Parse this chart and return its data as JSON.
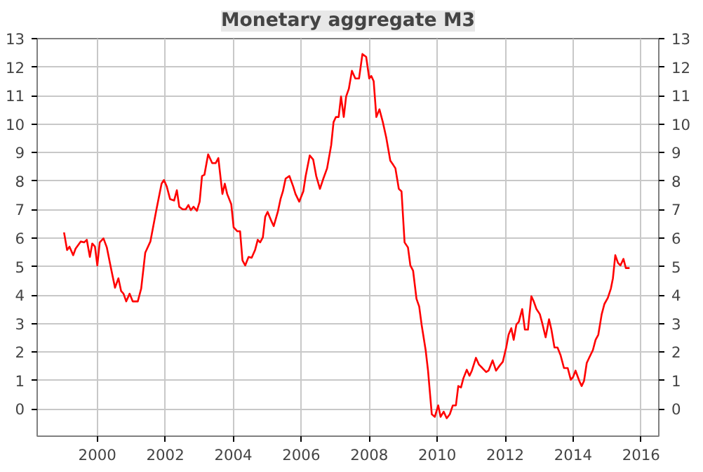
{
  "chart_data": {
    "type": "line",
    "title": "Monetary aggregate M3",
    "x": [
      1999.02,
      1999.11,
      1999.18,
      1999.29,
      1999.36,
      1999.51,
      1999.61,
      1999.69,
      1999.78,
      1999.85,
      1999.93,
      2000.0,
      2000.07,
      2000.18,
      2000.28,
      2000.4,
      2000.52,
      2000.62,
      2000.7,
      2000.77,
      2000.85,
      2000.95,
      2001.04,
      2001.19,
      2001.29,
      2001.41,
      2001.56,
      2001.74,
      2001.89,
      2001.96,
      2002.04,
      2002.14,
      2002.26,
      2002.34,
      2002.41,
      2002.51,
      2002.6,
      2002.68,
      2002.75,
      2002.83,
      2002.93,
      2003.01,
      2003.08,
      2003.15,
      2003.26,
      2003.38,
      2003.48,
      2003.56,
      2003.68,
      2003.75,
      2003.82,
      2003.94,
      2004.01,
      2004.12,
      2004.2,
      2004.27,
      2004.35,
      2004.45,
      2004.54,
      2004.64,
      2004.72,
      2004.79,
      2004.87,
      2004.94,
      2005.01,
      2005.12,
      2005.19,
      2005.31,
      2005.39,
      2005.46,
      2005.54,
      2005.65,
      2005.76,
      2005.83,
      2005.94,
      2006.06,
      2006.13,
      2006.25,
      2006.35,
      2006.44,
      2006.55,
      2006.65,
      2006.76,
      2006.88,
      2006.95,
      2007.02,
      2007.1,
      2007.17,
      2007.25,
      2007.32,
      2007.4,
      2007.49,
      2007.59,
      2007.7,
      2007.8,
      2007.91,
      2008.0,
      2008.06,
      2008.13,
      2008.21,
      2008.3,
      2008.4,
      2008.5,
      2008.62,
      2008.7,
      2008.77,
      2008.87,
      2008.95,
      2009.04,
      2009.14,
      2009.21,
      2009.29,
      2009.39,
      2009.47,
      2009.54,
      2009.66,
      2009.73,
      2009.84,
      2009.93,
      2010.03,
      2010.1,
      2010.19,
      2010.28,
      2010.37,
      2010.46,
      2010.55,
      2010.62,
      2010.7,
      2010.77,
      2010.87,
      2010.95,
      2011.02,
      2011.14,
      2011.23,
      2011.33,
      2011.44,
      2011.51,
      2011.63,
      2011.73,
      2011.84,
      2011.93,
      2012.03,
      2012.1,
      2012.18,
      2012.25,
      2012.33,
      2012.4,
      2012.5,
      2012.58,
      2012.67,
      2012.77,
      2012.84,
      2012.92,
      2013.02,
      2013.1,
      2013.19,
      2013.29,
      2013.36,
      2013.45,
      2013.54,
      2013.63,
      2013.73,
      2013.84,
      2013.93,
      2014.0,
      2014.07,
      2014.18,
      2014.25,
      2014.32,
      2014.4,
      2014.47,
      2014.58,
      2014.66,
      2014.74,
      2014.84,
      2014.92,
      2015.02,
      2015.11,
      2015.17,
      2015.24,
      2015.32,
      2015.39,
      2015.48,
      2015.55,
      2015.66
    ],
    "series": [
      {
        "color": "#ff0000",
        "values": [
          6.2,
          5.58,
          5.7,
          5.4,
          5.63,
          5.88,
          5.85,
          5.94,
          5.34,
          5.81,
          5.7,
          5.04,
          5.85,
          5.99,
          5.67,
          4.95,
          4.26,
          4.59,
          4.14,
          4.05,
          3.78,
          4.05,
          3.78,
          3.78,
          4.23,
          5.49,
          5.88,
          7.01,
          7.91,
          8.04,
          7.82,
          7.37,
          7.32,
          7.68,
          7.1,
          7.01,
          7.01,
          7.16,
          6.98,
          7.1,
          6.96,
          7.28,
          8.18,
          8.22,
          8.94,
          8.63,
          8.63,
          8.81,
          7.55,
          7.91,
          7.55,
          7.19,
          6.38,
          6.24,
          6.24,
          5.22,
          5.04,
          5.34,
          5.31,
          5.58,
          5.94,
          5.85,
          6.03,
          6.75,
          6.92,
          6.6,
          6.42,
          6.92,
          7.37,
          7.64,
          8.09,
          8.18,
          7.82,
          7.55,
          7.28,
          7.64,
          8.18,
          8.9,
          8.76,
          8.18,
          7.73,
          8.09,
          8.45,
          9.26,
          10.07,
          10.25,
          10.25,
          10.97,
          10.25,
          10.97,
          11.24,
          11.87,
          11.6,
          11.6,
          12.46,
          12.36,
          11.6,
          11.69,
          11.51,
          10.25,
          10.52,
          10.07,
          9.53,
          8.72,
          8.58,
          8.45,
          7.73,
          7.64,
          5.85,
          5.67,
          5.04,
          4.86,
          3.87,
          3.6,
          2.97,
          2.07,
          1.35,
          -0.18,
          -0.27,
          0.13,
          -0.27,
          -0.09,
          -0.32,
          -0.18,
          0.13,
          0.13,
          0.81,
          0.76,
          1.08,
          1.38,
          1.17,
          1.35,
          1.8,
          1.56,
          1.44,
          1.3,
          1.35,
          1.71,
          1.35,
          1.53,
          1.66,
          2.16,
          2.61,
          2.84,
          2.43,
          2.97,
          3.06,
          3.51,
          2.79,
          2.79,
          3.96,
          3.78,
          3.51,
          3.33,
          2.97,
          2.52,
          3.15,
          2.79,
          2.16,
          2.16,
          1.89,
          1.44,
          1.44,
          1.03,
          1.13,
          1.35,
          0.99,
          0.81,
          0.99,
          1.62,
          1.8,
          2.07,
          2.43,
          2.61,
          3.33,
          3.69,
          3.9,
          4.23,
          4.59,
          5.4,
          5.13,
          5.04,
          5.27,
          4.95,
          4.95
        ]
      }
    ],
    "xlim": [
      1998.23,
      2016.52
    ],
    "xticks": [
      2000,
      2002,
      2004,
      2006,
      2008,
      2010,
      2012,
      2014,
      2016
    ],
    "ylim": [
      -0.95,
      13
    ],
    "yticks": [
      0,
      1,
      2,
      3,
      4,
      5,
      6,
      7,
      8,
      9,
      10,
      11,
      12,
      13
    ],
    "y2lim": [
      -0.95,
      13
    ],
    "y2ticks": [
      0,
      1,
      2,
      3,
      4,
      5,
      6,
      7,
      8,
      9,
      10,
      11,
      12,
      13
    ],
    "grid": true,
    "marker": "none",
    "line_style": "solid"
  }
}
